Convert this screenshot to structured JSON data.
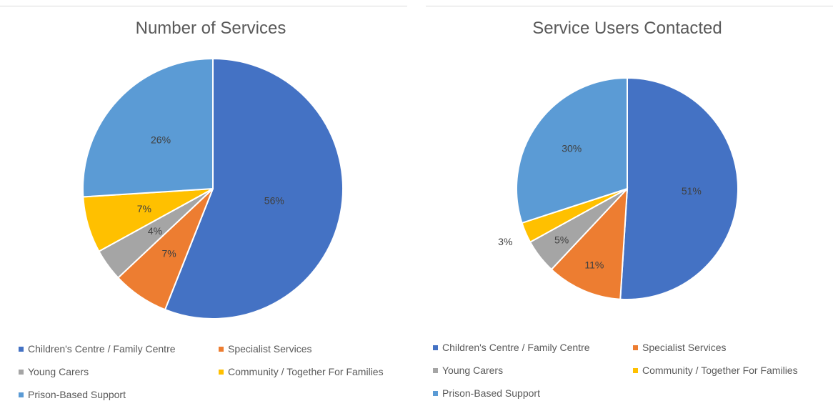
{
  "chart_data": [
    {
      "type": "pie",
      "title": "Number of Services",
      "categories": [
        "Children's Centre / Family Centre",
        "Specialist Services",
        "Young Carers",
        "Community / Together For Families",
        "Prison-Based Support"
      ],
      "values": [
        56,
        7,
        4,
        7,
        26
      ],
      "value_labels": [
        "56%",
        "7%",
        "4%",
        "7%",
        "26%"
      ],
      "colors": [
        "#4472c4",
        "#ed7d31",
        "#a5a5a5",
        "#ffc000",
        "#5b9bd5"
      ],
      "legend": "bottom"
    },
    {
      "type": "pie",
      "title": "Service Users Contacted",
      "categories": [
        "Children's Centre / Family Centre",
        "Specialist Services",
        "Young Carers",
        "Community / Together For Families",
        "Prison-Based Support"
      ],
      "values": [
        51,
        11,
        5,
        3,
        30
      ],
      "value_labels": [
        "51%",
        "11%",
        "5%",
        "3%",
        "30%"
      ],
      "colors": [
        "#4472c4",
        "#ed7d31",
        "#a5a5a5",
        "#ffc000",
        "#5b9bd5"
      ],
      "legend": "bottom"
    }
  ]
}
